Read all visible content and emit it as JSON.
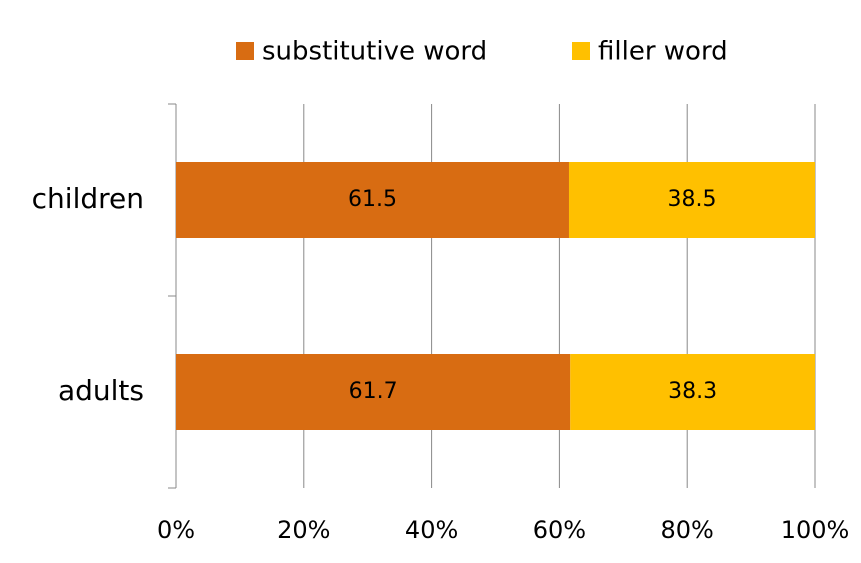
{
  "chart_data": {
    "type": "stacked-bar-horizontal",
    "categories": [
      "children",
      "adults"
    ],
    "series": [
      {
        "name": "substitutive word",
        "color": "#d86c12",
        "values": [
          61.5,
          61.7
        ]
      },
      {
        "name": "filler word",
        "color": "#ffc000",
        "values": [
          38.5,
          38.3
        ]
      }
    ],
    "xlim": [
      0,
      100
    ],
    "xticks": [
      {
        "value": 0,
        "label": "0%"
      },
      {
        "value": 20,
        "label": "20%"
      },
      {
        "value": 40,
        "label": "40%"
      },
      {
        "value": 60,
        "label": "60%"
      },
      {
        "value": 80,
        "label": "80%"
      },
      {
        "value": 100,
        "label": "100%"
      }
    ],
    "grid": true
  }
}
